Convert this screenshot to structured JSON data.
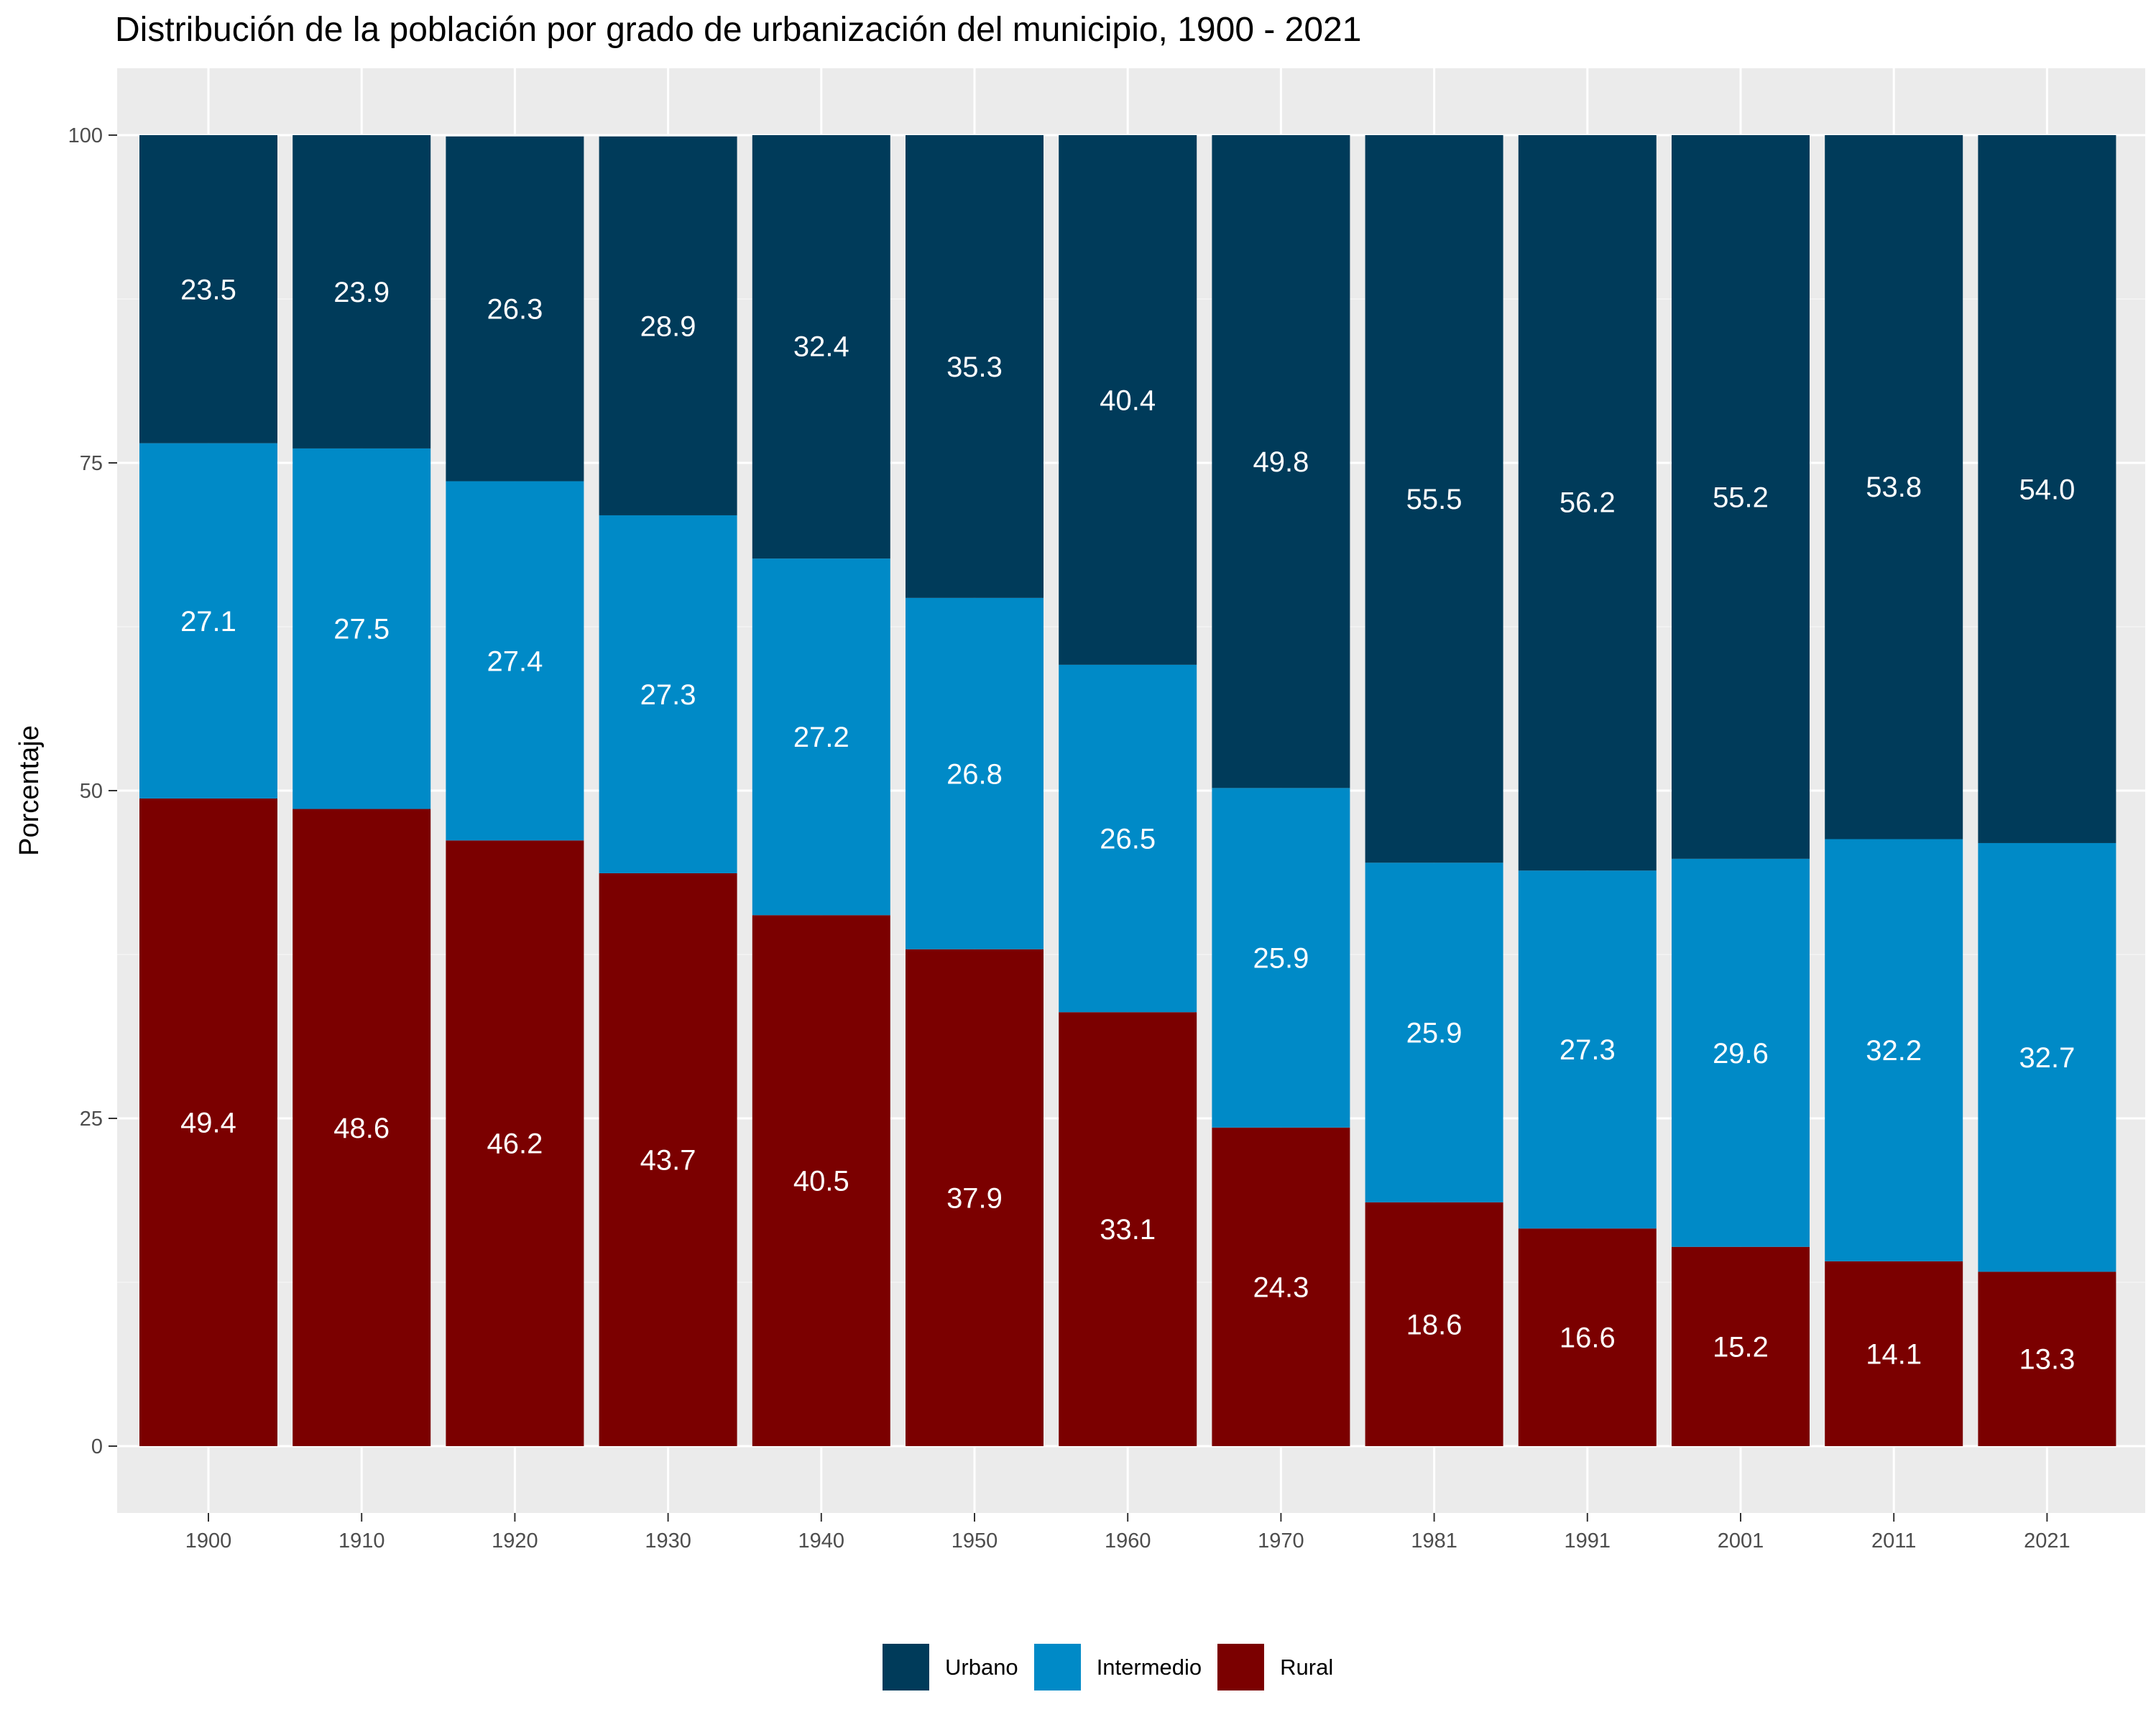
{
  "chart_data": {
    "type": "bar",
    "stacked": true,
    "title": "Distribución de la población por grado de urbanización del municipio, 1900 - 2021",
    "xlabel": "",
    "ylabel": "Porcentaje",
    "ylim": [
      0,
      100
    ],
    "yticks": [
      0,
      25,
      50,
      75,
      100
    ],
    "grid": true,
    "legend_position": "bottom",
    "categories": [
      "1900",
      "1910",
      "1920",
      "1930",
      "1940",
      "1950",
      "1960",
      "1970",
      "1981",
      "1991",
      "2001",
      "2011",
      "2021"
    ],
    "series": [
      {
        "name": "Rural",
        "color": "#7b0000",
        "values": [
          49.4,
          48.6,
          46.2,
          43.7,
          40.5,
          37.9,
          33.1,
          24.3,
          18.6,
          16.6,
          15.2,
          14.1,
          13.3
        ]
      },
      {
        "name": "Intermedio",
        "color": "#008ac7",
        "values": [
          27.1,
          27.5,
          27.4,
          27.3,
          27.2,
          26.8,
          26.5,
          25.9,
          25.9,
          27.3,
          29.6,
          32.2,
          32.7
        ]
      },
      {
        "name": "Urbano",
        "color": "#003b5a",
        "values": [
          23.5,
          23.9,
          26.3,
          28.9,
          32.4,
          35.3,
          40.4,
          49.8,
          55.5,
          56.2,
          55.2,
          53.8,
          54.0
        ]
      }
    ],
    "labels": {
      "Rural": [
        "49.4",
        "48.6",
        "46.2",
        "43.7",
        "40.5",
        "37.9",
        "33.1",
        "24.3",
        "18.6",
        "16.6",
        "15.2",
        "14.1",
        "13.3"
      ],
      "Intermedio": [
        "27.1",
        "27.5",
        "27.4",
        "27.3",
        "27.2",
        "26.8",
        "26.5",
        "25.9",
        "25.9",
        "27.3",
        "29.6",
        "32.2",
        "32.7"
      ],
      "Urbano": [
        "23.5",
        "23.9",
        "26.3",
        "28.9",
        "32.4",
        "35.3",
        "40.4",
        "49.8",
        "55.5",
        "56.2",
        "55.2",
        "53.8",
        "54.0"
      ]
    },
    "legend": [
      "Urbano",
      "Intermedio",
      "Rural"
    ]
  }
}
